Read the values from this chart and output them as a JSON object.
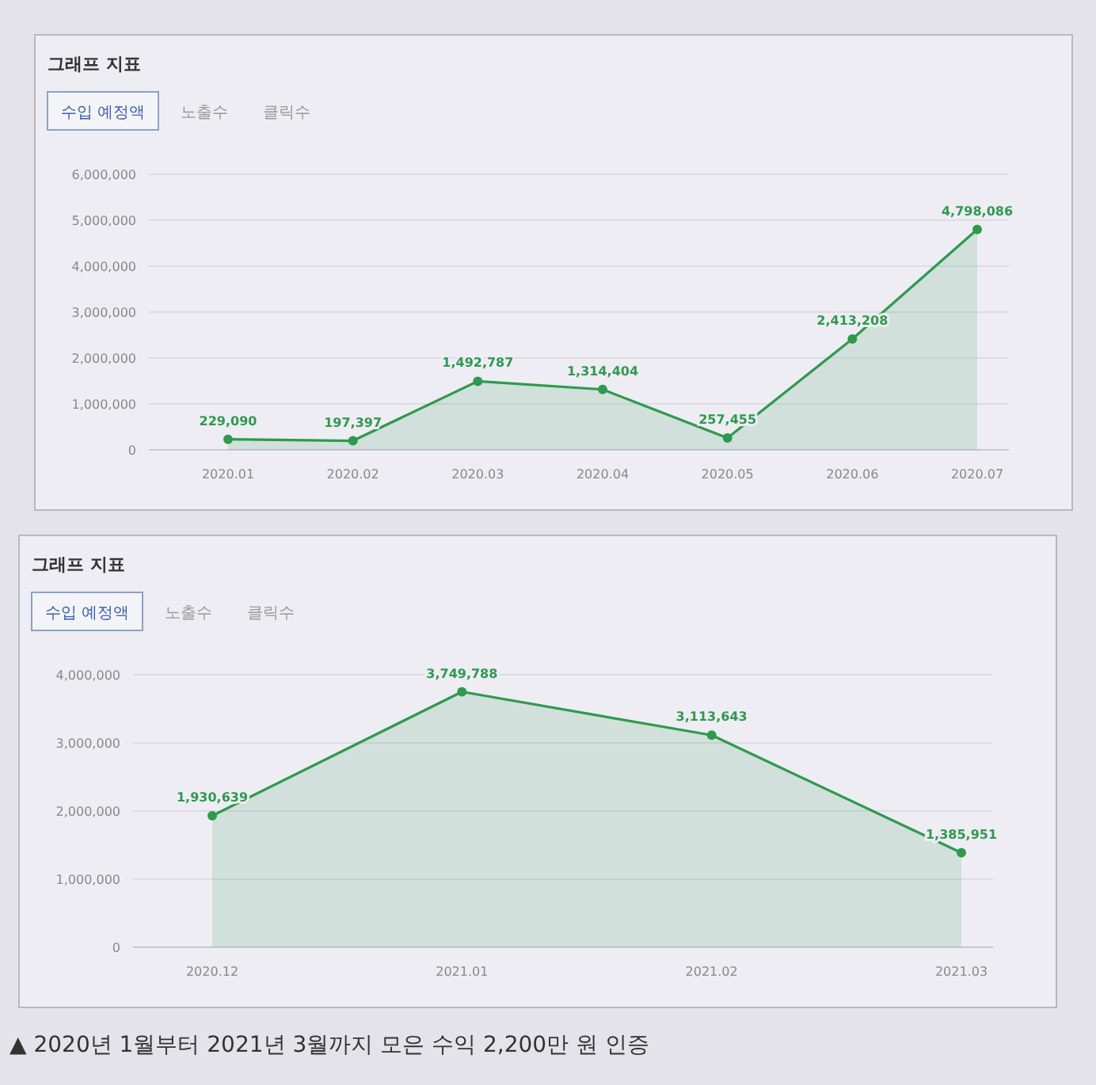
{
  "chart_data": [
    {
      "type": "area",
      "title": "그래프 지표",
      "annotations": [
        "수입 예정액",
        "노출수",
        "클릭수"
      ],
      "categories": [
        "2020.01",
        "2020.02",
        "2020.03",
        "2020.04",
        "2020.05",
        "2020.06",
        "2020.07"
      ],
      "series": [
        {
          "color": "#2e9a4e",
          "values": [
            229090,
            197397,
            1492787,
            1314404,
            257455,
            2413208,
            4798086
          ],
          "value_labels": [
            "229,090",
            "197,397",
            "1,492,787",
            "1,314,404",
            "257,455",
            "2,413,208",
            "4,798,086"
          ]
        }
      ],
      "ylim": [
        0,
        6000000
      ],
      "yticks": [
        {
          "value": 0,
          "label": "0"
        },
        {
          "value": 1000000,
          "label": "1,000,000"
        },
        {
          "value": 2000000,
          "label": "2,000,000"
        },
        {
          "value": 3000000,
          "label": "3,000,000"
        },
        {
          "value": 4000000,
          "label": "4,000,000"
        },
        {
          "value": 5000000,
          "label": "5,000,000"
        },
        {
          "value": 6000000,
          "label": "6,000,000"
        }
      ],
      "grid": "y",
      "marker": "circle"
    },
    {
      "type": "area",
      "title": "그래프 지표",
      "annotations": [
        "수입 예정액",
        "노출수",
        "클릭수",
        "▲ 2020년 1월부터 2021년 3월까지 모은 수익 2,200만 원 인증"
      ],
      "categories": [
        "2020.12",
        "2021.01",
        "2021.02",
        "2021.03"
      ],
      "series": [
        {
          "color": "#2e9a4e",
          "values": [
            1930639,
            3749788,
            3113643,
            1385951
          ],
          "value_labels": [
            "1,930,639",
            "3,749,788",
            "3,113,643",
            "1,385,951"
          ]
        }
      ],
      "ylim": [
        0,
        4000000
      ],
      "yticks": [
        {
          "value": 0,
          "label": "0"
        },
        {
          "value": 1000000,
          "label": "1,000,000"
        },
        {
          "value": 2000000,
          "label": "2,000,000"
        },
        {
          "value": 3000000,
          "label": "3,000,000"
        },
        {
          "value": 4000000,
          "label": "4,000,000"
        }
      ],
      "grid": "y",
      "marker": "circle"
    }
  ]
}
